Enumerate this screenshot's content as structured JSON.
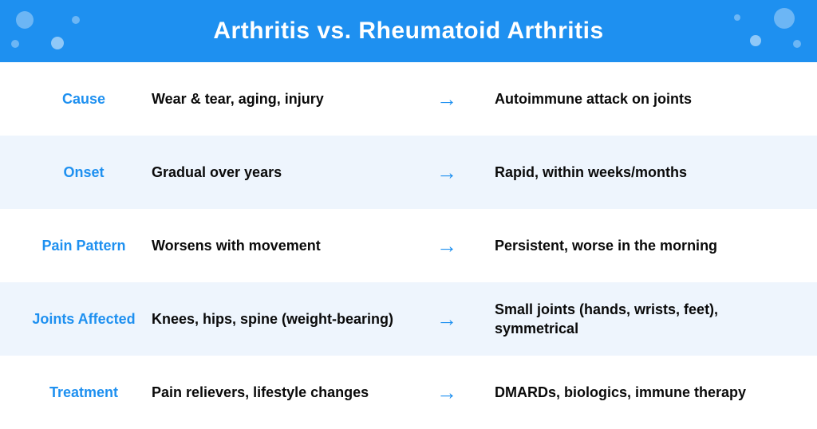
{
  "header": {
    "title": "Arthritis vs. Rheumatoid Arthritis",
    "bg_color": "#1e90f0",
    "text_color": "#ffffff"
  },
  "colors": {
    "accent": "#1e90f0",
    "row_alt_bg": "#eef5fd",
    "text": "#0a0a0a",
    "bubble": "rgba(255,255,255,0.35)"
  },
  "rows": [
    {
      "category": "Cause",
      "left": "Wear & tear, aging, injury",
      "right": "Autoimmune attack on joints",
      "alt": false
    },
    {
      "category": "Onset",
      "left": "Gradual over years",
      "right": "Rapid, within weeks/months",
      "alt": true
    },
    {
      "category": "Pain Pattern",
      "left": "Worsens with movement",
      "right": "Persistent, worse in the morning",
      "alt": false
    },
    {
      "category": "Joints Affected",
      "left": "Knees, hips, spine (weight-bearing)",
      "right": "Small joints (hands, wrists, feet), symmetrical",
      "alt": true
    },
    {
      "category": "Treatment",
      "left": "Pain relievers, lifestyle changes",
      "right": "DMARDs, biologics, immune therapy",
      "alt": false
    }
  ],
  "arrow_glyph": "→"
}
